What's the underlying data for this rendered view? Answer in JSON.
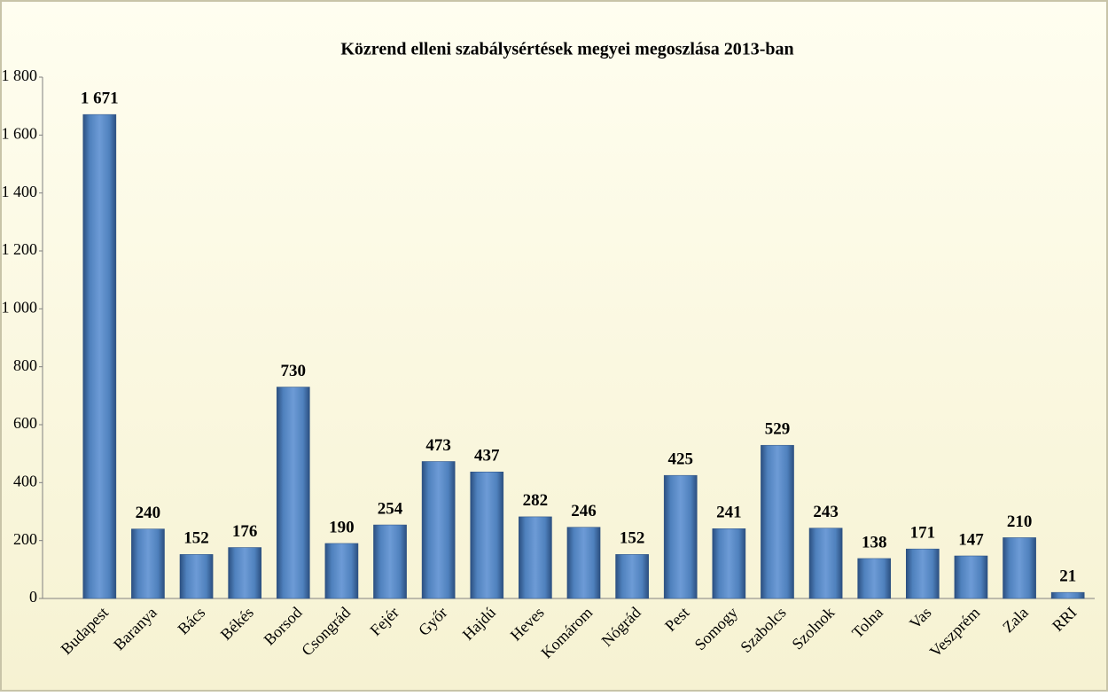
{
  "chart_data": {
    "type": "bar",
    "title": "Közrend elleni szabálysértések megyei megoszlása 2013-ban",
    "categories": [
      "Budapest",
      "Baranya",
      "Bács",
      "Békés",
      "Borsod",
      "Csongrád",
      "Fejér",
      "Győr",
      "Hajdú",
      "Heves",
      "Komárom",
      "Nógrád",
      "Pest",
      "Somogy",
      "Szabolcs",
      "Szolnok",
      "Tolna",
      "Vas",
      "Veszprém",
      "Zala",
      "RRI"
    ],
    "values": [
      1671,
      240,
      152,
      176,
      730,
      190,
      254,
      473,
      437,
      282,
      246,
      152,
      425,
      241,
      529,
      243,
      138,
      171,
      147,
      210,
      21
    ],
    "value_labels": [
      "1 671",
      "240",
      "152",
      "176",
      "730",
      "190",
      "254",
      "473",
      "437",
      "282",
      "246",
      "152",
      "425",
      "241",
      "529",
      "243",
      "138",
      "171",
      "147",
      "210",
      "21"
    ],
    "color": "#4f81bd",
    "ylim": [
      0,
      1800
    ],
    "yticks": [
      0,
      200,
      400,
      600,
      800,
      {
        "value": 1000,
        "label": "1 000"
      },
      {
        "value": 1200,
        "label": "1 200"
      },
      {
        "value": 1400,
        "label": "1 400"
      },
      {
        "value": 1600,
        "label": "1 600"
      },
      {
        "value": 1800,
        "label": "1 800"
      }
    ],
    "grid": false
  }
}
